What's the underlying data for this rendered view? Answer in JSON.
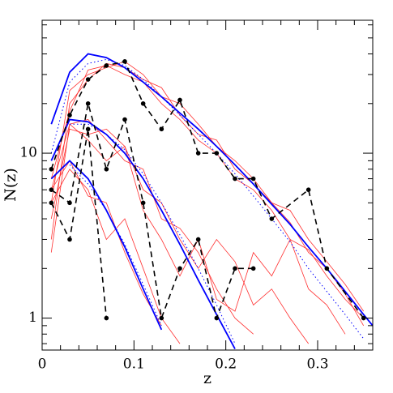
{
  "chart_data": {
    "type": "line",
    "xlabel": "z",
    "ylabel": "N(z)",
    "xlim": [
      0,
      0.36
    ],
    "ylim": [
      0.64,
      64
    ],
    "ylog": true,
    "xticks": [
      0,
      0.1,
      0.2,
      0.3
    ],
    "xminor": [
      0.02,
      0.04,
      0.06,
      0.08,
      0.12,
      0.14,
      0.16,
      0.18,
      0.22,
      0.24,
      0.26,
      0.28,
      0.32,
      0.34
    ],
    "yticks": [
      1,
      10
    ],
    "yminor": [
      0.7,
      0.8,
      0.9,
      2,
      3,
      4,
      5,
      6,
      7,
      8,
      9,
      20,
      30,
      40,
      50,
      60
    ],
    "series": [
      {
        "color": "#ff3030",
        "dash": "solid",
        "width": 0.8,
        "markers": false,
        "x": [
          0.01,
          0.03,
          0.05,
          0.07,
          0.09,
          0.11,
          0.13,
          0.15,
          0.17,
          0.19,
          0.21,
          0.23,
          0.25,
          0.27,
          0.29,
          0.31,
          0.33,
          0.35
        ],
        "values": [
          5,
          24,
          30,
          33,
          36,
          30,
          22,
          20,
          15,
          11,
          9,
          7,
          5,
          4.5,
          3,
          2.2,
          1.6,
          1.1
        ]
      },
      {
        "color": "#ff3030",
        "dash": "solid",
        "width": 0.8,
        "markers": false,
        "x": [
          0.01,
          0.03,
          0.05,
          0.07,
          0.09,
          0.11,
          0.13,
          0.15,
          0.17,
          0.19,
          0.21,
          0.23,
          0.25,
          0.27,
          0.29,
          0.31,
          0.33,
          0.35
        ],
        "values": [
          3,
          20,
          28,
          35,
          33,
          28,
          25,
          17,
          13,
          12,
          8,
          6.5,
          5,
          3.8,
          2.5,
          2,
          1.4,
          0.9
        ]
      },
      {
        "color": "#ff3030",
        "dash": "solid",
        "width": 0.8,
        "markers": false,
        "x": [
          0.01,
          0.03,
          0.05,
          0.07,
          0.09,
          0.11,
          0.13,
          0.15,
          0.17,
          0.19,
          0.21,
          0.23,
          0.25,
          0.27,
          0.29,
          0.31,
          0.33,
          0.35
        ],
        "values": [
          7,
          18,
          32,
          34,
          30,
          27,
          20,
          16,
          12,
          10,
          7,
          6,
          4.5,
          3,
          2.6,
          1.8,
          1.3,
          1
        ]
      },
      {
        "color": "#ff3030",
        "dash": "solid",
        "width": 0.8,
        "markers": false,
        "x": [
          0.01,
          0.03,
          0.05,
          0.07,
          0.09,
          0.11,
          0.13,
          0.15,
          0.17,
          0.19,
          0.21,
          0.23
        ],
        "values": [
          2.5,
          15,
          16,
          12,
          9,
          8,
          4,
          3.5,
          2.5,
          1.5,
          1,
          0.8
        ]
      },
      {
        "color": "#ff3030",
        "dash": "solid",
        "width": 0.8,
        "markers": false,
        "x": [
          0.01,
          0.03,
          0.05,
          0.07,
          0.09,
          0.11,
          0.13,
          0.15,
          0.17,
          0.19,
          0.21,
          0.23,
          0.25,
          0.27,
          0.29
        ],
        "values": [
          4,
          14,
          13,
          14,
          11,
          6,
          5,
          3,
          2,
          3,
          2.2,
          1.2,
          1.5,
          1,
          0.7
        ]
      },
      {
        "color": "#ff3030",
        "dash": "solid",
        "width": 0.8,
        "markers": false,
        "x": [
          0.01,
          0.03,
          0.05,
          0.07,
          0.09,
          0.11,
          0.13,
          0.15,
          0.17,
          0.19,
          0.21,
          0.23,
          0.25,
          0.27,
          0.29,
          0.31,
          0.33
        ],
        "values": [
          6,
          15,
          12,
          9,
          11,
          4.5,
          3,
          1.8,
          3,
          1.3,
          1.1,
          2.5,
          1.8,
          3,
          1.5,
          1.2,
          0.8
        ]
      },
      {
        "color": "#ff3030",
        "dash": "solid",
        "width": 0.8,
        "markers": false,
        "x": [
          0.01,
          0.03,
          0.05,
          0.07,
          0.09,
          0.11,
          0.13,
          0.15
        ],
        "values": [
          5,
          8,
          6,
          3,
          4,
          2,
          1,
          0.7
        ]
      },
      {
        "color": "#ff3030",
        "dash": "solid",
        "width": 0.8,
        "markers": false,
        "x": [
          0.01,
          0.03,
          0.05,
          0.07,
          0.09,
          0.11,
          0.13
        ],
        "values": [
          6,
          9,
          5.5,
          5,
          2.5,
          1.4,
          0.9
        ]
      },
      {
        "color": "#0000ff",
        "dash": "dotted",
        "width": 1,
        "markers": false,
        "x": [
          0.01,
          0.03,
          0.05,
          0.07,
          0.09,
          0.11,
          0.13,
          0.15,
          0.17,
          0.19,
          0.21,
          0.23,
          0.25,
          0.27,
          0.29,
          0.31,
          0.33,
          0.35
        ],
        "values": [
          10,
          27,
          35,
          37,
          34,
          28,
          22,
          17,
          13,
          10,
          7.5,
          5.5,
          4,
          2.9,
          2,
          1.45,
          1.05,
          0.75
        ]
      },
      {
        "color": "#0000ff",
        "dash": "dotted",
        "width": 1,
        "markers": false,
        "x": [
          0.03,
          0.05,
          0.07,
          0.09,
          0.11,
          0.13,
          0.15,
          0.17,
          0.19,
          0.21
        ],
        "values": [
          15,
          15,
          13,
          10.5,
          7.5,
          5,
          3.2,
          2,
          1.2,
          0.7
        ]
      },
      {
        "color": "#0000ff",
        "dash": "dotted",
        "width": 1,
        "markers": false,
        "x": [
          0.03,
          0.05,
          0.07,
          0.09,
          0.11,
          0.13
        ],
        "values": [
          8.5,
          6.5,
          4.5,
          2.8,
          1.6,
          0.9
        ]
      },
      {
        "color": "#0000ff",
        "dash": "solid",
        "width": 1.8,
        "markers": false,
        "x": [
          0.01,
          0.03,
          0.05,
          0.07,
          0.09,
          0.11,
          0.13,
          0.15,
          0.17,
          0.19,
          0.21,
          0.23,
          0.25,
          0.27,
          0.29,
          0.31,
          0.33,
          0.35,
          0.36
        ],
        "values": [
          15,
          31,
          40,
          38,
          33,
          27,
          22,
          17.5,
          14,
          11,
          8.5,
          6.5,
          4.9,
          3.7,
          2.7,
          2,
          1.45,
          1.05,
          0.9
        ]
      },
      {
        "color": "#0000ff",
        "dash": "solid",
        "width": 1.8,
        "markers": false,
        "x": [
          0.01,
          0.03,
          0.05,
          0.07,
          0.09,
          0.11,
          0.13,
          0.15,
          0.17,
          0.19,
          0.21
        ],
        "values": [
          9,
          16,
          15.5,
          13,
          10,
          7,
          4.5,
          2.8,
          1.7,
          1.05,
          0.65
        ]
      },
      {
        "color": "#0000ff",
        "dash": "solid",
        "width": 1.8,
        "markers": false,
        "x": [
          0.01,
          0.03,
          0.05,
          0.07,
          0.09,
          0.11,
          0.13
        ],
        "values": [
          7,
          9,
          7,
          4.5,
          2.7,
          1.5,
          0.85
        ]
      },
      {
        "color": "#000000",
        "dash": "dashed",
        "width": 1.6,
        "markers": true,
        "x": [
          0.01,
          0.03,
          0.05,
          0.07,
          0.09,
          0.11,
          0.13,
          0.15,
          0.17,
          0.19,
          0.21,
          0.23,
          0.25,
          0.29,
          0.31,
          0.35
        ],
        "values": [
          8,
          17,
          28,
          34,
          36,
          20,
          14,
          21,
          10,
          10,
          7,
          7,
          4,
          6,
          2,
          1
        ]
      },
      {
        "color": "#000000",
        "dash": "dashed",
        "width": 1.6,
        "markers": true,
        "x": [
          0.01,
          0.03,
          0.05,
          0.07,
          0.09,
          0.11,
          0.13,
          0.15,
          0.17,
          0.19,
          0.21,
          0.23
        ],
        "values": [
          6,
          5,
          20,
          8,
          16,
          5,
          1,
          2,
          3,
          1,
          2,
          2
        ]
      },
      {
        "color": "#000000",
        "dash": "dashed",
        "width": 1.6,
        "markers": true,
        "x": [
          0.01,
          0.03,
          0.05,
          0.07
        ],
        "values": [
          5,
          3,
          14,
          1
        ]
      }
    ]
  }
}
